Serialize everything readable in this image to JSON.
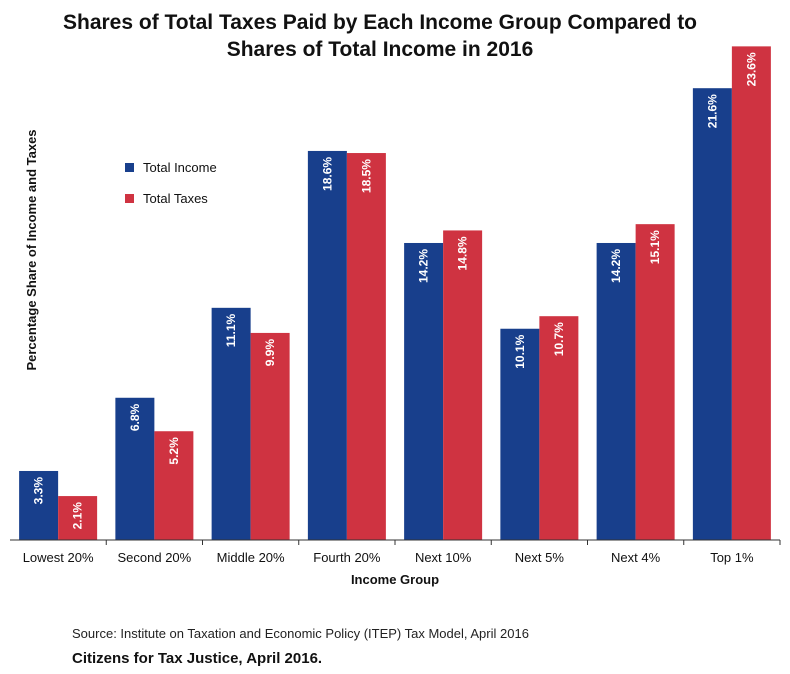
{
  "chart_data": {
    "type": "bar",
    "title_lines": [
      "Shares of Total Taxes Paid by Each Income Group  Compared to",
      "Shares of Total Income in 2016"
    ],
    "xlabel": "Income Group",
    "ylabel": "Percentage Share of Income and Taxes",
    "categories": [
      "Lowest 20%",
      "Second 20%",
      "Middle 20%",
      "Fourth 20%",
      "Next 10%",
      "Next 5%",
      "Next 4%",
      "Top 1%"
    ],
    "series": [
      {
        "name": "Total Income",
        "color": "#183f8c",
        "values": [
          3.3,
          6.8,
          11.1,
          18.6,
          14.2,
          10.1,
          14.2,
          21.6
        ],
        "labels": [
          "3.3%",
          "6.8%",
          "11.1%",
          "18.6%",
          "14.2%",
          "10.1%",
          "14.2%",
          "21.6%"
        ]
      },
      {
        "name": "Total Taxes",
        "color": "#cf3341",
        "values": [
          2.1,
          5.2,
          9.9,
          18.5,
          14.8,
          10.7,
          15.1,
          23.6
        ],
        "labels": [
          "2.1%",
          "5.2%",
          "9.9%",
          "18.5%",
          "14.8%",
          "10.7%",
          "15.1%",
          "23.6%"
        ]
      }
    ],
    "ylim": [
      0,
      24
    ],
    "legend_position": "upper-left",
    "grid": false
  },
  "footer": {
    "source": "Source: Institute on Taxation and Economic Policy (ITEP) Tax Model, April 2016",
    "credit": "Citizens for Tax Justice, April 2016."
  }
}
